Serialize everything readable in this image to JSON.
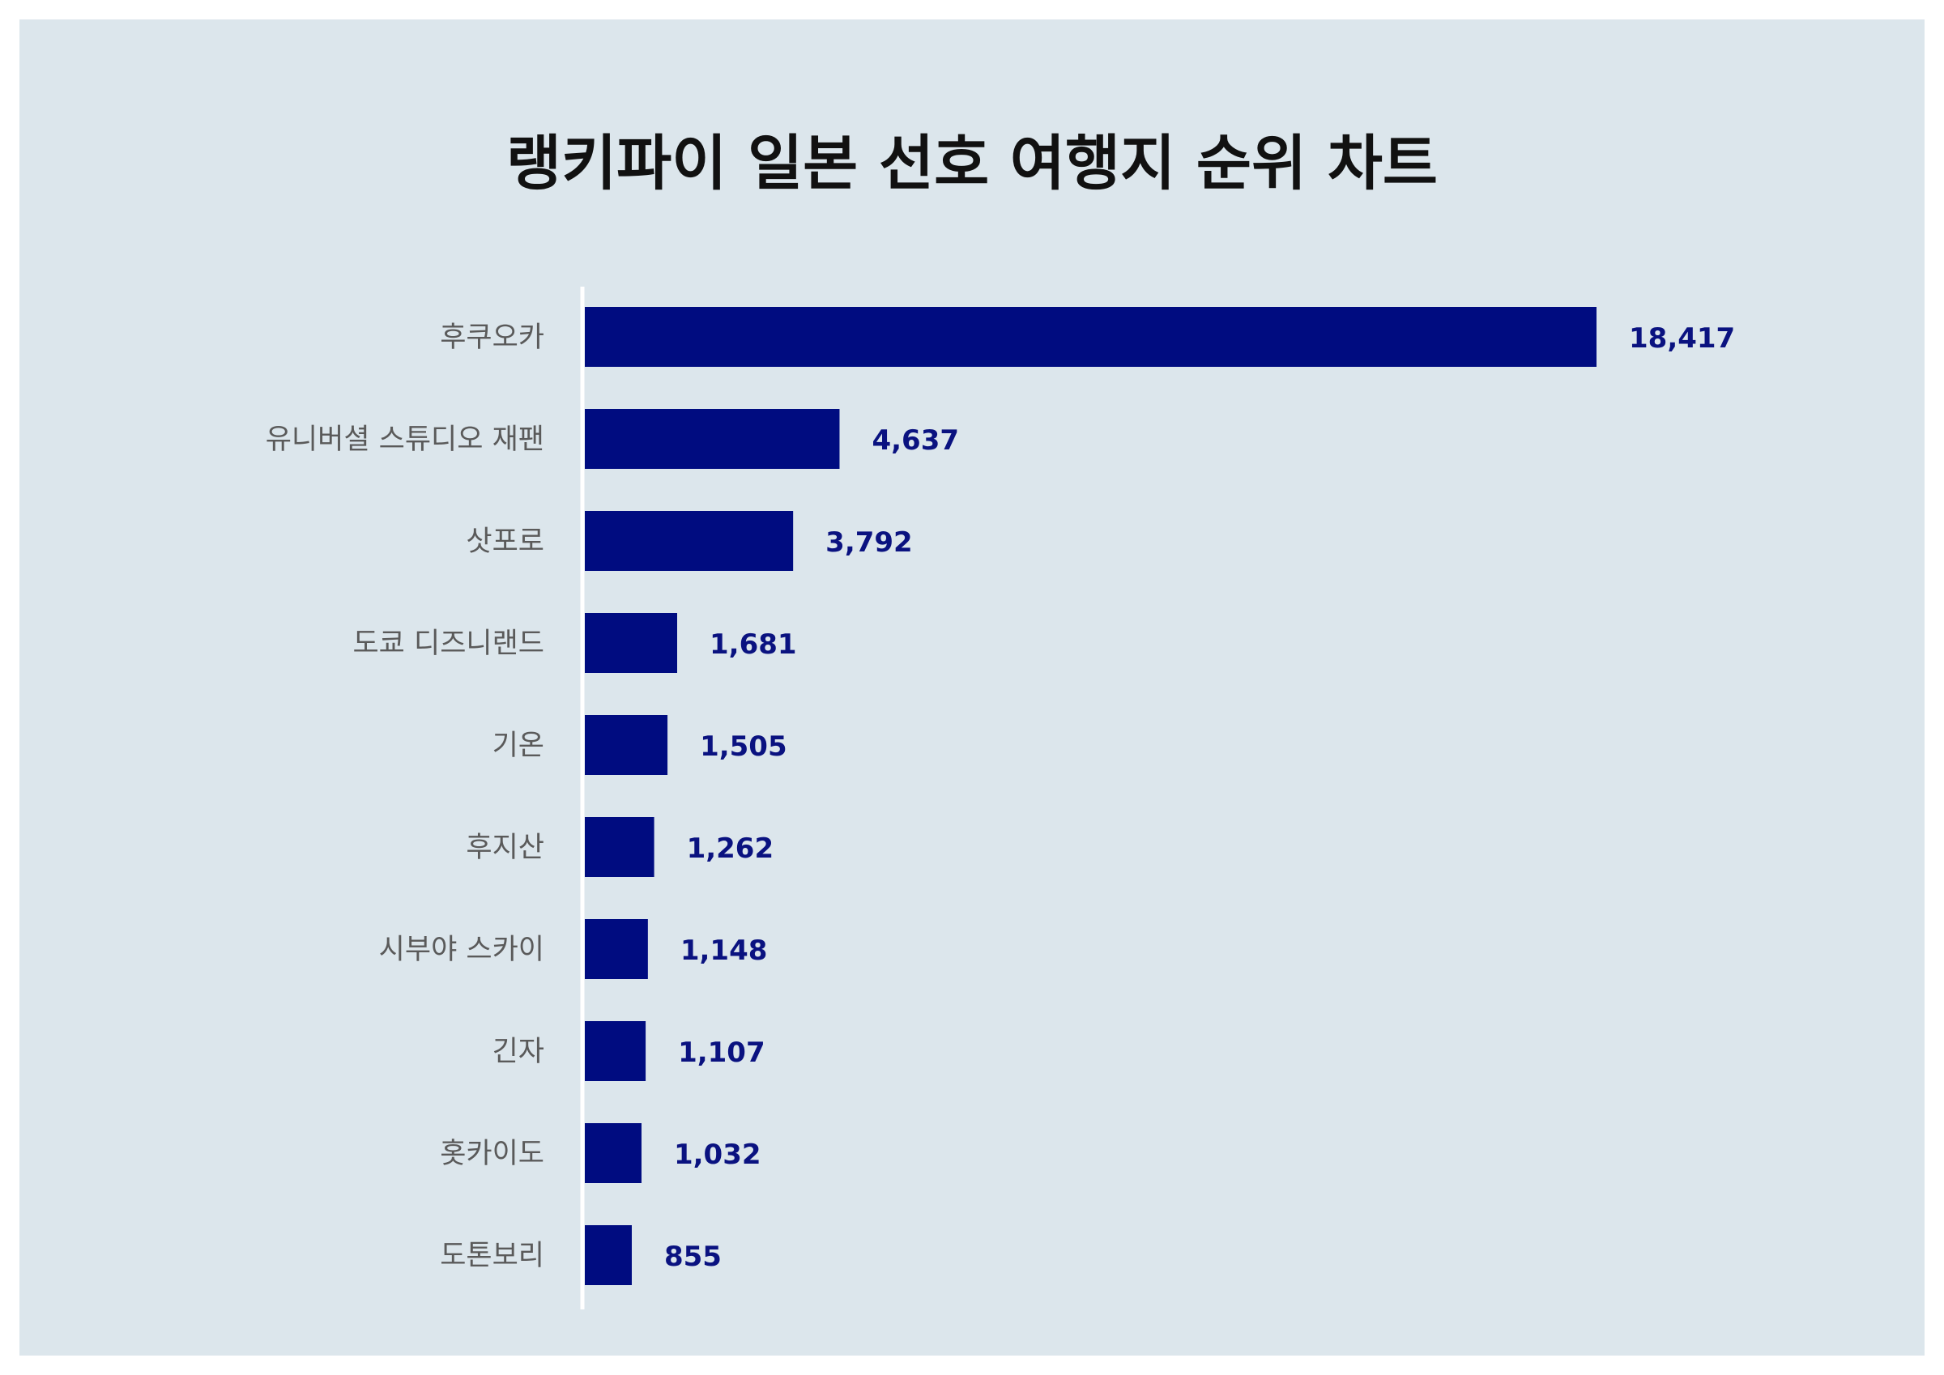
{
  "chart_data": {
    "type": "bar",
    "orientation": "horizontal",
    "title": "랭키파이 일본 선호 여행지 순위 차트",
    "categories": [
      "후쿠오카",
      "유니버셜 스튜디오 재팬",
      "삿포로",
      "도쿄 디즈니랜드",
      "기온",
      "후지산",
      "시부야 스카이",
      "긴자",
      "홋카이도",
      "도톤보리"
    ],
    "values": [
      18417,
      4637,
      3792,
      1681,
      1505,
      1262,
      1148,
      1107,
      1032,
      855
    ],
    "value_labels": [
      "18,417",
      "4,637",
      "3,792",
      "1,681",
      "1,505",
      "1,262",
      "1,148",
      "1,107",
      "1,032",
      "855"
    ],
    "xlim": [
      0,
      20000
    ],
    "grid": false,
    "legend": "none"
  },
  "colors": {
    "background": "#dce6ec",
    "bar": "#000c80",
    "value_text": "#0a1280",
    "axis_line": "#ffffff"
  }
}
